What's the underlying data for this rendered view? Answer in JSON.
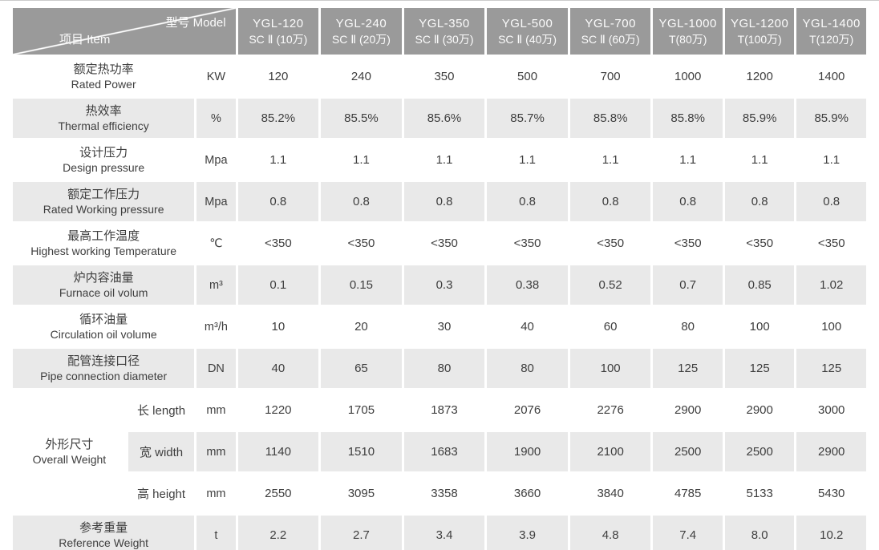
{
  "table": {
    "corner": {
      "top_right": "型号 Model",
      "bottom_left": "项目 Item"
    },
    "models": [
      {
        "name": "YGL-120",
        "spec": "SC Ⅱ (10万)"
      },
      {
        "name": "YGL-240",
        "spec": "SC Ⅱ (20万)"
      },
      {
        "name": "YGL-350",
        "spec": "SC Ⅱ (30万)"
      },
      {
        "name": "YGL-500",
        "spec": "SC Ⅱ (40万)"
      },
      {
        "name": "YGL-700",
        "spec": "SC Ⅱ (60万)"
      },
      {
        "name": "YGL-1000",
        "spec": "T(80万)"
      },
      {
        "name": "YGL-1200",
        "spec": "T(100万)"
      },
      {
        "name": "YGL-1400",
        "spec": "T(120万)"
      }
    ],
    "rows": [
      {
        "zh": "额定热功率",
        "en": "Rated Power",
        "unit": "KW",
        "values": [
          "120",
          "240",
          "350",
          "500",
          "700",
          "1000",
          "1200",
          "1400"
        ]
      },
      {
        "zh": "热效率",
        "en": "Thermal efficiency",
        "unit": "%",
        "values": [
          "85.2%",
          "85.5%",
          "85.6%",
          "85.7%",
          "85.8%",
          "85.8%",
          "85.9%",
          "85.9%"
        ]
      },
      {
        "zh": "设计压力",
        "en": "Design pressure",
        "unit": "Mpa",
        "values": [
          "1.1",
          "1.1",
          "1.1",
          "1.1",
          "1.1",
          "1.1",
          "1.1",
          "1.1"
        ]
      },
      {
        "zh": "额定工作压力",
        "en": "Rated Working pressure",
        "unit": "Mpa",
        "values": [
          "0.8",
          "0.8",
          "0.8",
          "0.8",
          "0.8",
          "0.8",
          "0.8",
          "0.8"
        ]
      },
      {
        "zh": "最高工作温度",
        "en": "Highest working Temperature",
        "unit": "℃",
        "values": [
          "<350",
          "<350",
          "<350",
          "<350",
          "<350",
          "<350",
          "<350",
          "<350"
        ]
      },
      {
        "zh": "炉内容油量",
        "en": "Furnace oil volum",
        "unit": "m³",
        "values": [
          "0.1",
          "0.15",
          "0.3",
          "0.38",
          "0.52",
          "0.7",
          "0.85",
          "1.02"
        ]
      },
      {
        "zh": "循环油量",
        "en": "Circulation oil volume",
        "unit": "m³/h",
        "values": [
          "10",
          "20",
          "30",
          "40",
          "60",
          "80",
          "100",
          "100"
        ]
      },
      {
        "zh": "配管连接口径",
        "en": "Pipe connection diameter",
        "unit": "DN",
        "values": [
          "40",
          "65",
          "80",
          "80",
          "100",
          "125",
          "125",
          "125"
        ]
      }
    ],
    "dimension_group": {
      "zh": "外形尺寸",
      "en": "Overall Weight",
      "rows": [
        {
          "label": "长 length",
          "unit": "mm",
          "values": [
            "1220",
            "1705",
            "1873",
            "2076",
            "2276",
            "2900",
            "2900",
            "3000"
          ]
        },
        {
          "label": "宽 width",
          "unit": "mm",
          "values": [
            "1140",
            "1510",
            "1683",
            "1900",
            "2100",
            "2500",
            "2500",
            "2900"
          ]
        },
        {
          "label": "高 height",
          "unit": "mm",
          "values": [
            "2550",
            "3095",
            "3358",
            "3660",
            "3840",
            "4785",
            "5133",
            "5430"
          ]
        }
      ]
    },
    "weight_row": {
      "zh": "参考重量",
      "en": "Reference Weight",
      "unit": "t",
      "values": [
        "2.2",
        "2.7",
        "3.4",
        "3.9",
        "4.8",
        "7.4",
        "8.0",
        "10.2"
      ]
    },
    "colors": {
      "header_bg": "#9a9a9a",
      "header_text": "#fbfbfb",
      "alt_row_bg": "#e9e9e9",
      "body_text": "#3e3e3e"
    }
  }
}
